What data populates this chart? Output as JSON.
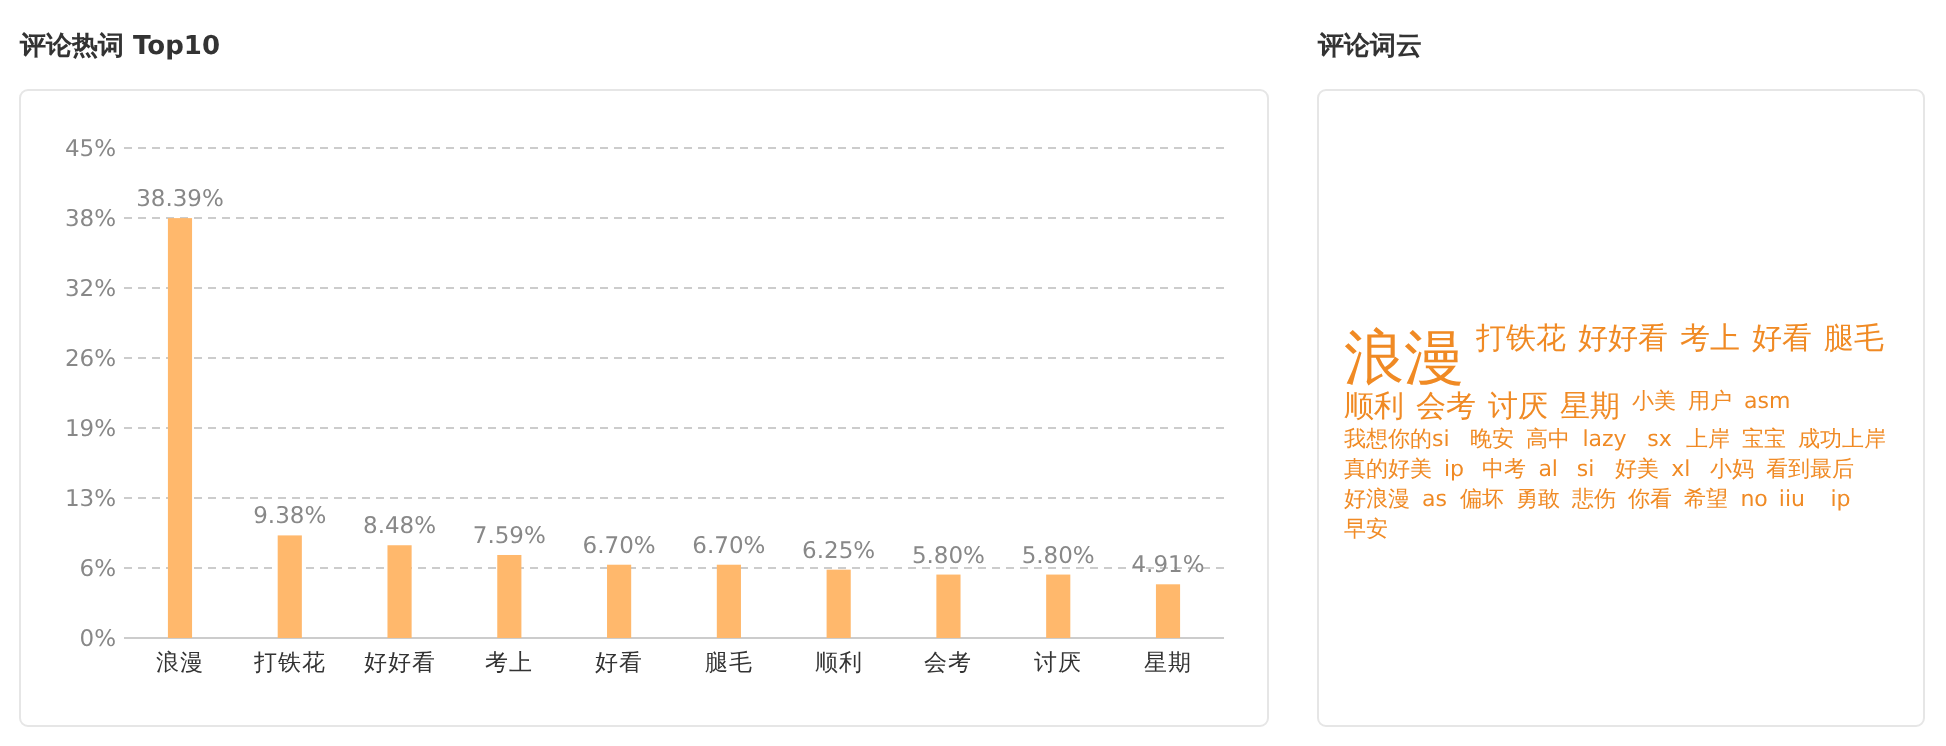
{
  "chart_data": [
    {
      "type": "bar",
      "title": "评论热词 Top10",
      "categories": [
        "浪漫",
        "打铁花",
        "好好看",
        "考上",
        "好看",
        "腿毛",
        "顺利",
        "会考",
        "讨厌",
        "星期"
      ],
      "values": [
        38.39,
        9.38,
        8.48,
        7.59,
        6.7,
        6.7,
        6.25,
        5.8,
        5.8,
        4.91
      ],
      "value_labels": [
        "38.39%",
        "9.38%",
        "8.48%",
        "7.59%",
        "6.70%",
        "6.70%",
        "6.25%",
        "5.80%",
        "5.80%",
        "4.91%"
      ],
      "color": "#ffb86c",
      "ylim": [
        0,
        44.8
      ],
      "yticks": [
        {
          "value": 0,
          "label": "0%"
        },
        {
          "value": 6.4,
          "label": "6%"
        },
        {
          "value": 12.8,
          "label": "13%"
        },
        {
          "value": 19.2,
          "label": "19%"
        },
        {
          "value": 25.6,
          "label": "26%"
        },
        {
          "value": 32,
          "label": "32%"
        },
        {
          "value": 38.4,
          "label": "38%"
        },
        {
          "value": 44.8,
          "label": "45%"
        }
      ],
      "grid": "y"
    },
    {
      "type": "other",
      "title": "评论词云",
      "annotations": [
        "浪漫",
        "打铁花",
        "好好看",
        "考上",
        "好看",
        "腿毛",
        "顺利",
        "会考",
        "讨厌",
        "星期",
        "小美",
        "用户",
        "asm",
        "我想你的si",
        "晚安",
        "高中",
        "lazy",
        "sx",
        "上岸",
        "宝宝",
        "成功上岸",
        "真的好美",
        "ip",
        "中考",
        "al",
        "si",
        "好美",
        "xl",
        "小妈",
        "看到最后",
        "好浪漫",
        "as",
        "偏坏",
        "勇敢",
        "悲伤",
        "你看",
        "希望",
        "no",
        "iiu",
        "ip",
        "早安"
      ]
    }
  ]
}
